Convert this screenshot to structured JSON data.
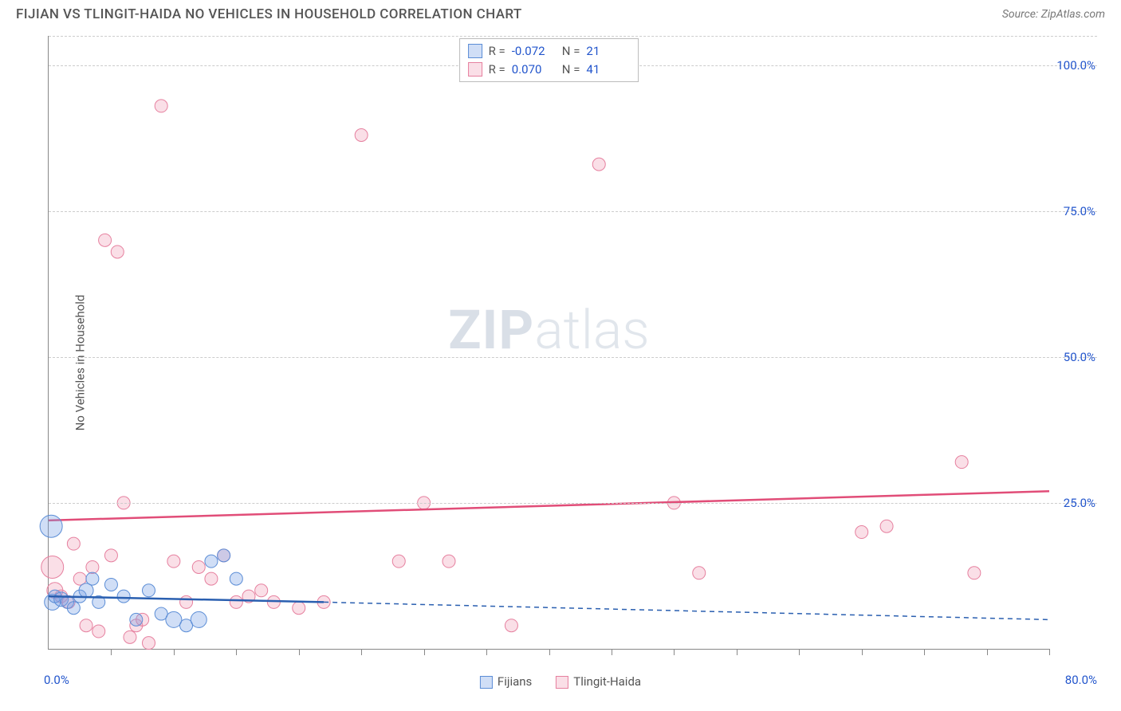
{
  "title": "FIJIAN VS TLINGIT-HAIDA NO VEHICLES IN HOUSEHOLD CORRELATION CHART",
  "source": "Source: ZipAtlas.com",
  "y_axis_label": "No Vehicles in Household",
  "watermark_zip": "ZIP",
  "watermark_atlas": "atlas",
  "chart": {
    "type": "scatter",
    "x_min": 0.0,
    "x_max": 80.0,
    "y_min": 0.0,
    "y_max": 105.0,
    "x_origin_label": "0.0%",
    "x_max_label": "80.0%",
    "y_grid": [
      {
        "value": 25.0,
        "label": "25.0%"
      },
      {
        "value": 50.0,
        "label": "50.0%"
      },
      {
        "value": 75.0,
        "label": "75.0%"
      },
      {
        "value": 100.0,
        "label": "100.0%"
      },
      {
        "value": 105.0,
        "label": ""
      }
    ],
    "x_ticks": [
      5,
      10,
      15,
      20,
      25,
      30,
      35,
      40,
      45,
      50,
      55,
      60,
      65,
      70,
      75,
      80
    ],
    "background_color": "#ffffff",
    "grid_color": "#cccccc",
    "axis_color": "#888888",
    "label_color": "#2255cc",
    "series": [
      {
        "id": "fijians",
        "name": "Fijians",
        "fill": "rgba(120,160,230,0.35)",
        "stroke": "#5b8dd6",
        "line_color": "#2a5fb0",
        "r_stat": "-0.072",
        "n_stat": "21",
        "trend": {
          "x1": 0.0,
          "y1": 9.0,
          "x2": 22.0,
          "y2": 8.0,
          "solid_to_x": 22.0,
          "extend_to_x": 80.0,
          "extend_y": 5.0
        },
        "points": [
          {
            "x": 0.2,
            "y": 21.0,
            "r": 14
          },
          {
            "x": 0.3,
            "y": 8.0,
            "r": 10
          },
          {
            "x": 0.5,
            "y": 9.0,
            "r": 8
          },
          {
            "x": 1.0,
            "y": 8.5,
            "r": 9
          },
          {
            "x": 1.5,
            "y": 8.0,
            "r": 8
          },
          {
            "x": 2.0,
            "y": 7.0,
            "r": 8
          },
          {
            "x": 2.5,
            "y": 9.0,
            "r": 8
          },
          {
            "x": 3.0,
            "y": 10.0,
            "r": 9
          },
          {
            "x": 3.5,
            "y": 12.0,
            "r": 8
          },
          {
            "x": 4.0,
            "y": 8.0,
            "r": 8
          },
          {
            "x": 5.0,
            "y": 11.0,
            "r": 8
          },
          {
            "x": 6.0,
            "y": 9.0,
            "r": 8
          },
          {
            "x": 7.0,
            "y": 5.0,
            "r": 8
          },
          {
            "x": 8.0,
            "y": 10.0,
            "r": 8
          },
          {
            "x": 9.0,
            "y": 6.0,
            "r": 8
          },
          {
            "x": 10.0,
            "y": 5.0,
            "r": 10
          },
          {
            "x": 11.0,
            "y": 4.0,
            "r": 8
          },
          {
            "x": 12.0,
            "y": 5.0,
            "r": 10
          },
          {
            "x": 13.0,
            "y": 15.0,
            "r": 8
          },
          {
            "x": 14.0,
            "y": 16.0,
            "r": 8
          },
          {
            "x": 15.0,
            "y": 12.0,
            "r": 8
          }
        ]
      },
      {
        "id": "tlingit",
        "name": "Tlingit-Haida",
        "fill": "rgba(240,150,175,0.30)",
        "stroke": "#e6809f",
        "line_color": "#e14d78",
        "r_stat": "0.070",
        "n_stat": "41",
        "trend": {
          "x1": 0.0,
          "y1": 22.0,
          "x2": 80.0,
          "y2": 27.0,
          "solid_to_x": 80.0
        },
        "points": [
          {
            "x": 0.3,
            "y": 14.0,
            "r": 14
          },
          {
            "x": 0.5,
            "y": 10.0,
            "r": 10
          },
          {
            "x": 1.0,
            "y": 9.0,
            "r": 8
          },
          {
            "x": 1.6,
            "y": 8.0,
            "r": 8
          },
          {
            "x": 2.0,
            "y": 18.0,
            "r": 8
          },
          {
            "x": 2.5,
            "y": 12.0,
            "r": 8
          },
          {
            "x": 3.0,
            "y": 4.0,
            "r": 8
          },
          {
            "x": 3.5,
            "y": 14.0,
            "r": 8
          },
          {
            "x": 4.0,
            "y": 3.0,
            "r": 8
          },
          {
            "x": 4.5,
            "y": 70.0,
            "r": 8
          },
          {
            "x": 5.0,
            "y": 16.0,
            "r": 8
          },
          {
            "x": 5.5,
            "y": 68.0,
            "r": 8
          },
          {
            "x": 6.0,
            "y": 25.0,
            "r": 8
          },
          {
            "x": 6.5,
            "y": 2.0,
            "r": 8
          },
          {
            "x": 7.0,
            "y": 4.0,
            "r": 8
          },
          {
            "x": 8.0,
            "y": 1.0,
            "r": 8
          },
          {
            "x": 9.0,
            "y": 93.0,
            "r": 8
          },
          {
            "x": 10.0,
            "y": 15.0,
            "r": 8
          },
          {
            "x": 11.0,
            "y": 8.0,
            "r": 8
          },
          {
            "x": 12.0,
            "y": 14.0,
            "r": 8
          },
          {
            "x": 13.0,
            "y": 12.0,
            "r": 8
          },
          {
            "x": 14.0,
            "y": 16.0,
            "r": 8
          },
          {
            "x": 15.0,
            "y": 8.0,
            "r": 8
          },
          {
            "x": 16.0,
            "y": 9.0,
            "r": 8
          },
          {
            "x": 17.0,
            "y": 10.0,
            "r": 8
          },
          {
            "x": 18.0,
            "y": 8.0,
            "r": 8
          },
          {
            "x": 20.0,
            "y": 7.0,
            "r": 8
          },
          {
            "x": 22.0,
            "y": 8.0,
            "r": 8
          },
          {
            "x": 25.0,
            "y": 88.0,
            "r": 8
          },
          {
            "x": 28.0,
            "y": 15.0,
            "r": 8
          },
          {
            "x": 30.0,
            "y": 25.0,
            "r": 8
          },
          {
            "x": 32.0,
            "y": 15.0,
            "r": 8
          },
          {
            "x": 37.0,
            "y": 4.0,
            "r": 8
          },
          {
            "x": 44.0,
            "y": 83.0,
            "r": 8
          },
          {
            "x": 50.0,
            "y": 25.0,
            "r": 8
          },
          {
            "x": 52.0,
            "y": 13.0,
            "r": 8
          },
          {
            "x": 65.0,
            "y": 20.0,
            "r": 8
          },
          {
            "x": 67.0,
            "y": 21.0,
            "r": 8
          },
          {
            "x": 73.0,
            "y": 32.0,
            "r": 8
          },
          {
            "x": 74.0,
            "y": 13.0,
            "r": 8
          },
          {
            "x": 7.5,
            "y": 5.0,
            "r": 8
          }
        ]
      }
    ],
    "bottom_legend": [
      {
        "label": "Fijians",
        "fill": "rgba(120,160,230,0.35)",
        "stroke": "#5b8dd6"
      },
      {
        "label": "Tlingit-Haida",
        "fill": "rgba(240,150,175,0.30)",
        "stroke": "#e6809f"
      }
    ]
  }
}
